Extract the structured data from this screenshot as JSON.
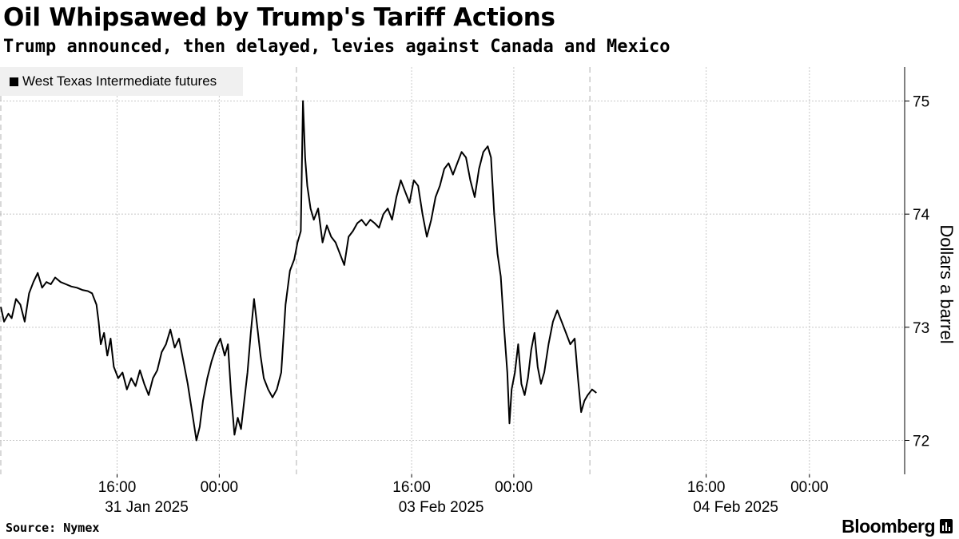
{
  "header": {
    "title": "Oil Whipsawed by Trump's Tariff Actions",
    "subtitle": "Trump announced, then delayed, levies against Canada and Mexico"
  },
  "footer": {
    "source": "Source: Nymex",
    "brand": "Bloomberg"
  },
  "colors": {
    "line": "#000000",
    "grid": "#c8c8c8",
    "legend_bg": "#f0f0f0"
  },
  "chart_data": {
    "type": "line",
    "title": "Oil Whipsawed by Trump's Tariff Actions",
    "subtitle": "Trump announced, then delayed, levies against Canada and Mexico",
    "ylabel": "Dollars a barrel",
    "xlabel": "",
    "ylim": [
      71.7,
      75.3
    ],
    "yticks": [
      72,
      73,
      74,
      75
    ],
    "y_axis_side": "right",
    "grid": true,
    "legend_position": "top-left",
    "x_tick_labels": [
      {
        "time": "16:00",
        "date": "31 Jan 2025"
      },
      {
        "time": "00:00",
        "date": ""
      },
      {
        "time": "16:00",
        "date": "03 Feb 2025"
      },
      {
        "time": "00:00",
        "date": ""
      },
      {
        "time": "16:00",
        "date": "04 Feb 2025"
      },
      {
        "time": "00:00",
        "date": ""
      }
    ],
    "series": [
      {
        "name": "West Texas Intermediate futures",
        "x_unit": "trading hours since 31 Jan 2025 open",
        "points": [
          [
            0,
            73.18
          ],
          [
            0.3,
            73.05
          ],
          [
            0.7,
            73.12
          ],
          [
            1.0,
            73.08
          ],
          [
            1.4,
            73.25
          ],
          [
            1.8,
            73.2
          ],
          [
            2.2,
            73.05
          ],
          [
            2.6,
            73.3
          ],
          [
            3.0,
            73.4
          ],
          [
            3.4,
            73.48
          ],
          [
            3.8,
            73.35
          ],
          [
            4.2,
            73.4
          ],
          [
            4.6,
            73.38
          ],
          [
            5.0,
            73.44
          ],
          [
            5.5,
            73.4
          ],
          [
            6.0,
            73.38
          ],
          [
            6.5,
            73.36
          ],
          [
            7.0,
            73.35
          ],
          [
            7.5,
            73.33
          ],
          [
            8.0,
            73.32
          ],
          [
            8.4,
            73.3
          ],
          [
            8.8,
            73.2
          ],
          [
            9.0,
            73.05
          ],
          [
            9.2,
            72.85
          ],
          [
            9.5,
            72.95
          ],
          [
            9.8,
            72.75
          ],
          [
            10.1,
            72.9
          ],
          [
            10.4,
            72.65
          ],
          [
            10.8,
            72.55
          ],
          [
            11.2,
            72.6
          ],
          [
            11.6,
            72.45
          ],
          [
            12.0,
            72.55
          ],
          [
            12.4,
            72.48
          ],
          [
            12.8,
            72.62
          ],
          [
            13.2,
            72.5
          ],
          [
            13.6,
            72.4
          ],
          [
            14.0,
            72.55
          ],
          [
            14.4,
            72.62
          ],
          [
            14.8,
            72.78
          ],
          [
            15.2,
            72.85
          ],
          [
            15.6,
            72.98
          ],
          [
            16.0,
            72.82
          ],
          [
            16.4,
            72.9
          ],
          [
            16.8,
            72.7
          ],
          [
            17.2,
            72.5
          ],
          [
            17.6,
            72.25
          ],
          [
            18.0,
            72.0
          ],
          [
            18.3,
            72.12
          ],
          [
            18.6,
            72.35
          ],
          [
            19.0,
            72.55
          ],
          [
            19.4,
            72.7
          ],
          [
            19.8,
            72.82
          ],
          [
            20.2,
            72.9
          ],
          [
            20.6,
            72.75
          ],
          [
            20.9,
            72.85
          ],
          [
            21.2,
            72.4
          ],
          [
            21.5,
            72.05
          ],
          [
            21.8,
            72.2
          ],
          [
            22.1,
            72.1
          ],
          [
            22.4,
            72.35
          ],
          [
            22.7,
            72.6
          ],
          [
            23.0,
            72.95
          ],
          [
            23.3,
            73.25
          ],
          [
            23.6,
            73.0
          ],
          [
            23.9,
            72.75
          ],
          [
            24.2,
            72.55
          ],
          [
            24.6,
            72.45
          ],
          [
            25.0,
            72.38
          ],
          [
            25.4,
            72.45
          ],
          [
            25.8,
            72.6
          ],
          [
            26.2,
            73.2
          ],
          [
            26.6,
            73.5
          ],
          [
            27.0,
            73.6
          ],
          [
            27.3,
            73.75
          ],
          [
            27.6,
            73.85
          ],
          [
            27.8,
            75.0
          ],
          [
            28.0,
            74.5
          ],
          [
            28.2,
            74.25
          ],
          [
            28.5,
            74.05
          ],
          [
            28.8,
            73.95
          ],
          [
            29.2,
            74.05
          ],
          [
            29.6,
            73.75
          ],
          [
            30.0,
            73.9
          ],
          [
            30.4,
            73.8
          ],
          [
            30.8,
            73.75
          ],
          [
            31.2,
            73.65
          ],
          [
            31.6,
            73.55
          ],
          [
            32.0,
            73.8
          ],
          [
            32.4,
            73.85
          ],
          [
            32.8,
            73.92
          ],
          [
            33.2,
            73.95
          ],
          [
            33.6,
            73.9
          ],
          [
            34.0,
            73.95
          ],
          [
            34.4,
            73.92
          ],
          [
            34.8,
            73.88
          ],
          [
            35.2,
            74.0
          ],
          [
            35.6,
            74.05
          ],
          [
            36.0,
            73.95
          ],
          [
            36.4,
            74.15
          ],
          [
            36.8,
            74.3
          ],
          [
            37.2,
            74.2
          ],
          [
            37.6,
            74.1
          ],
          [
            38.0,
            74.3
          ],
          [
            38.4,
            74.25
          ],
          [
            38.8,
            74.0
          ],
          [
            39.2,
            73.8
          ],
          [
            39.6,
            73.95
          ],
          [
            40.0,
            74.15
          ],
          [
            40.4,
            74.25
          ],
          [
            40.8,
            74.4
          ],
          [
            41.2,
            74.45
          ],
          [
            41.6,
            74.35
          ],
          [
            42.0,
            74.45
          ],
          [
            42.4,
            74.55
          ],
          [
            42.8,
            74.5
          ],
          [
            43.2,
            74.3
          ],
          [
            43.6,
            74.15
          ],
          [
            44.0,
            74.4
          ],
          [
            44.4,
            74.55
          ],
          [
            44.8,
            74.6
          ],
          [
            45.1,
            74.5
          ],
          [
            45.4,
            74.0
          ],
          [
            45.7,
            73.65
          ],
          [
            46.0,
            73.45
          ],
          [
            46.3,
            73.0
          ],
          [
            46.6,
            72.6
          ],
          [
            46.8,
            72.15
          ],
          [
            47.0,
            72.45
          ],
          [
            47.3,
            72.6
          ],
          [
            47.6,
            72.85
          ],
          [
            47.9,
            72.5
          ],
          [
            48.2,
            72.4
          ],
          [
            48.5,
            72.55
          ],
          [
            48.8,
            72.8
          ],
          [
            49.1,
            72.95
          ],
          [
            49.4,
            72.65
          ],
          [
            49.7,
            72.5
          ],
          [
            50.0,
            72.6
          ],
          [
            50.4,
            72.85
          ],
          [
            50.8,
            73.05
          ],
          [
            51.2,
            73.15
          ],
          [
            51.6,
            73.05
          ],
          [
            52.0,
            72.95
          ],
          [
            52.4,
            72.85
          ],
          [
            52.8,
            72.9
          ],
          [
            53.1,
            72.55
          ],
          [
            53.4,
            72.25
          ],
          [
            53.7,
            72.35
          ],
          [
            54.0,
            72.4
          ],
          [
            54.4,
            72.45
          ],
          [
            54.8,
            72.42
          ]
        ]
      }
    ]
  }
}
